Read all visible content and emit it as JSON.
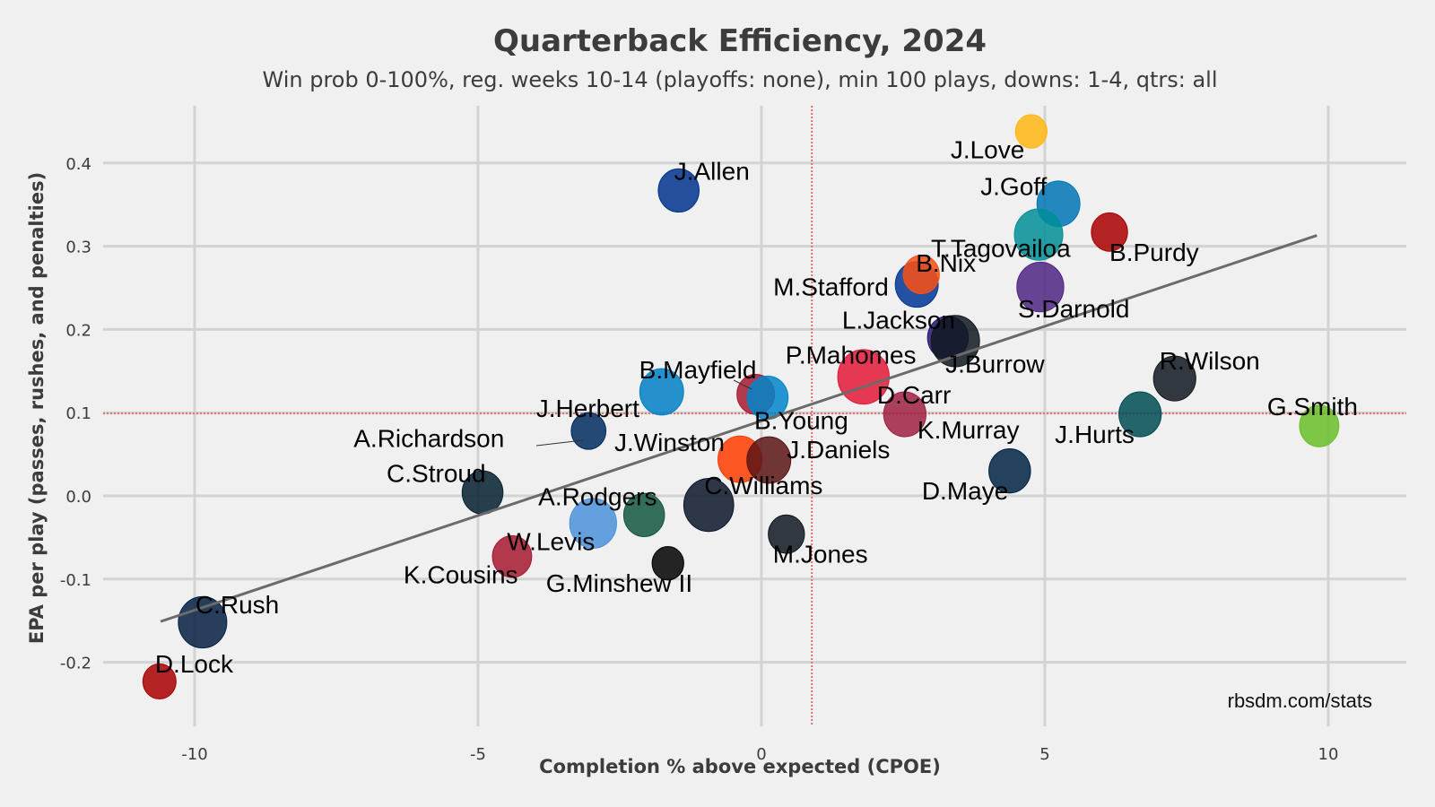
{
  "chart_data": {
    "type": "scatter",
    "title": "Quarterback Efficiency, 2024",
    "subtitle": "Win prob 0-100%, reg. weeks 10-14 (playoffs: none), min 100 plays, downs: 1-4, qtrs: all",
    "xlabel": "Completion % above expected (CPOE)",
    "ylabel": "EPA per play (passes, rushes, and penalties)",
    "xlim": [
      -11.7,
      10.9
    ],
    "ylim": [
      -0.255,
      0.47
    ],
    "xticks": [
      -10,
      -5,
      0,
      5,
      10
    ],
    "xtick_labels": [
      "-10",
      "-5",
      "0",
      "5",
      "10"
    ],
    "yticks": [
      -0.2,
      -0.1,
      0.0,
      0.1,
      0.2,
      0.3,
      0.4
    ],
    "ytick_labels": [
      "-0.2",
      "-0.1",
      "0.0",
      "0.1",
      "0.2",
      "0.3",
      "0.4"
    ],
    "grid": true,
    "reference_lines": {
      "x_mean": 0.89,
      "y_mean": 0.099
    },
    "trend_line": {
      "x": [
        -10.6,
        9.8
      ],
      "y": [
        -0.151,
        0.313
      ]
    },
    "credit": "rbsdm.com/stats",
    "points": [
      {
        "name": "J.Love",
        "x": 4.76,
        "y": 0.438,
        "size": 0.45,
        "color": "#FFB612"
      },
      {
        "name": "J.Allen",
        "x": -1.46,
        "y": 0.367,
        "size": 0.75,
        "color": "#00338D"
      },
      {
        "name": "J.Goff",
        "x": 5.24,
        "y": 0.351,
        "size": 0.82,
        "color": "#0076B6"
      },
      {
        "name": "B.Purdy",
        "x": 6.14,
        "y": 0.317,
        "size": 0.6,
        "color": "#AA0000"
      },
      {
        "name": "T.Tagovailoa",
        "x": 4.89,
        "y": 0.314,
        "size": 1.0,
        "color": "#008E97"
      },
      {
        "name": "M.Stafford",
        "x": 2.74,
        "y": 0.254,
        "size": 0.82,
        "color": "#003594"
      },
      {
        "name": "B.Nix",
        "x": 2.82,
        "y": 0.266,
        "size": 0.6,
        "color": "#FB4F14"
      },
      {
        "name": "S.Darnold",
        "x": 4.92,
        "y": 0.251,
        "size": 0.95,
        "color": "#4F2683"
      },
      {
        "name": "L.Jackson",
        "x": 3.29,
        "y": 0.19,
        "size": 0.75,
        "color": "#241773"
      },
      {
        "name": "J.Burrow",
        "x": 3.42,
        "y": 0.186,
        "size": 1.0,
        "color": "#101820"
      },
      {
        "name": "P.Mahomes",
        "x": 1.8,
        "y": 0.143,
        "size": 1.1,
        "color": "#E31837"
      },
      {
        "name": "B.Mayfield",
        "x": -0.1,
        "y": 0.122,
        "size": 0.65,
        "color": "#A71930"
      },
      {
        "name": "J.Herbert",
        "x": -1.76,
        "y": 0.125,
        "size": 0.85,
        "color": "#0080C6"
      },
      {
        "name": "B.Young",
        "x": 0.11,
        "y": 0.118,
        "size": 0.75,
        "color": "#0085CA"
      },
      {
        "name": "R.Wilson",
        "x": 7.29,
        "y": 0.141,
        "size": 0.8,
        "color": "#101820"
      },
      {
        "name": "D.Carr",
        "x": 2.53,
        "y": 0.098,
        "size": 0.8,
        "color": "#9F2042"
      },
      {
        "name": "K.Murray",
        "x": 2.53,
        "y": 0.098,
        "size": 0.0,
        "color": "#97233F"
      },
      {
        "name": "J.Hurts",
        "x": 6.68,
        "y": 0.098,
        "size": 0.8,
        "color": "#004C54"
      },
      {
        "name": "G.Smith",
        "x": 9.84,
        "y": 0.084,
        "size": 0.7,
        "color": "#69BE28"
      },
      {
        "name": "A.Richardson",
        "x": -3.05,
        "y": 0.078,
        "size": 0.55,
        "color": "#002C5F"
      },
      {
        "name": "J.Winston",
        "x": -0.38,
        "y": 0.044,
        "size": 0.85,
        "color": "#FF3C00"
      },
      {
        "name": "J.Daniels",
        "x": 0.13,
        "y": 0.043,
        "size": 0.85,
        "color": "#5A1414"
      },
      {
        "name": "D.Maye",
        "x": 4.38,
        "y": 0.03,
        "size": 0.78,
        "color": "#002244"
      },
      {
        "name": "C.Stroud",
        "x": -4.92,
        "y": 0.004,
        "size": 0.75,
        "color": "#03202F"
      },
      {
        "name": "C.Williams",
        "x": -0.93,
        "y": -0.011,
        "size": 1.05,
        "color": "#0B162A"
      },
      {
        "name": "A.Rodgers",
        "x": -2.07,
        "y": -0.023,
        "size": 0.75,
        "color": "#125740"
      },
      {
        "name": "W.Levis",
        "x": -2.97,
        "y": -0.033,
        "size": 0.95,
        "color": "#4B92DB"
      },
      {
        "name": "M.Jones",
        "x": 0.44,
        "y": -0.046,
        "size": 0.6,
        "color": "#101820"
      },
      {
        "name": "K.Cousins",
        "x": -4.4,
        "y": -0.073,
        "size": 0.7,
        "color": "#A71930"
      },
      {
        "name": "G.Minshew II",
        "x": -1.65,
        "y": -0.081,
        "size": 0.45,
        "color": "#000000"
      },
      {
        "name": "C.Rush",
        "x": -9.86,
        "y": -0.152,
        "size": 1.0,
        "color": "#041E42"
      },
      {
        "name": "D.Lock",
        "x": -10.62,
        "y": -0.223,
        "size": 0.5,
        "color": "#AA0000"
      }
    ]
  }
}
